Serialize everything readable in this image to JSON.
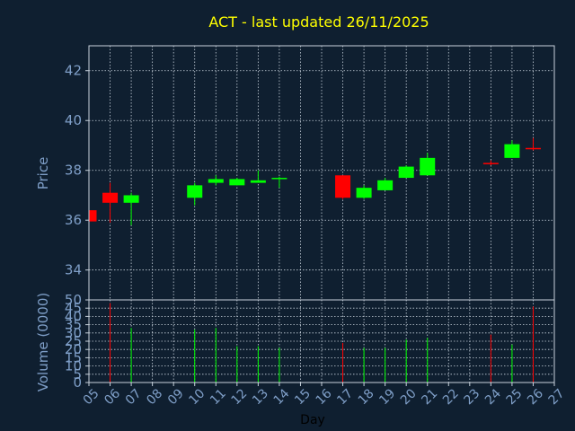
{
  "chart_data": {
    "type": "candlestick",
    "title": "ACT - last updated 26/11/2025",
    "xlabel": "Day",
    "price_panel": {
      "ylabel": "Price",
      "ylim": [
        32.8,
        43
      ],
      "yticks": [
        "34",
        "36",
        "38",
        "40",
        "42"
      ],
      "ytick_values": [
        34,
        36,
        38,
        40,
        42
      ]
    },
    "volume_panel": {
      "ylabel": "Volume (0000)",
      "ylim": [
        0,
        50
      ],
      "yticks": [
        "0",
        "5",
        "10",
        "15",
        "20",
        "25",
        "30",
        "35",
        "40",
        "45",
        "50"
      ],
      "ytick_values": [
        0,
        5,
        10,
        15,
        20,
        25,
        30,
        35,
        40,
        45,
        50
      ]
    },
    "x_range": [
      5,
      27
    ],
    "x_ticks": [
      "05",
      "06",
      "07",
      "08",
      "09",
      "10",
      "11",
      "12",
      "13",
      "14",
      "15",
      "16",
      "17",
      "18",
      "19",
      "20",
      "21",
      "22",
      "23",
      "24",
      "25",
      "26",
      "27"
    ],
    "x_tick_values": [
      5,
      6,
      7,
      8,
      9,
      10,
      11,
      12,
      13,
      14,
      15,
      16,
      17,
      18,
      19,
      20,
      21,
      22,
      23,
      24,
      25,
      26,
      27
    ],
    "grid": true,
    "colors": {
      "background": "#0f1f30",
      "up": "#00ff00",
      "down": "#ff0000",
      "title": "#ffff00",
      "axis_text": "#7f9fc8",
      "frame": "#c8d2dc",
      "grid": "#c8d2dc",
      "xlabel": "#000000"
    },
    "candles": [
      {
        "day": 5,
        "open": 36.4,
        "high": 36.4,
        "low": 35.9,
        "close": 35.95,
        "volume": 0
      },
      {
        "day": 6,
        "open": 37.1,
        "high": 37.5,
        "low": 35.9,
        "close": 36.7,
        "volume": 48
      },
      {
        "day": 7,
        "open": 36.7,
        "high": 37.1,
        "low": 35.8,
        "close": 37.0,
        "volume": 33
      },
      {
        "day": 10,
        "open": 36.9,
        "high": 37.5,
        "low": 36.6,
        "close": 37.4,
        "volume": 32
      },
      {
        "day": 11,
        "open": 37.5,
        "high": 37.8,
        "low": 37.4,
        "close": 37.65,
        "volume": 33
      },
      {
        "day": 12,
        "open": 37.4,
        "high": 37.7,
        "low": 37.4,
        "close": 37.65,
        "volume": 22
      },
      {
        "day": 13,
        "open": 37.5,
        "high": 38.0,
        "low": 37.5,
        "close": 37.6,
        "volume": 22
      },
      {
        "day": 14,
        "open": 37.65,
        "high": 37.75,
        "low": 37.3,
        "close": 37.7,
        "volume": 21
      },
      {
        "day": 17,
        "open": 37.8,
        "high": 37.8,
        "low": 36.85,
        "close": 36.9,
        "volume": 24
      },
      {
        "day": 18,
        "open": 36.9,
        "high": 37.4,
        "low": 36.85,
        "close": 37.3,
        "volume": 21
      },
      {
        "day": 19,
        "open": 37.2,
        "high": 37.7,
        "low": 37.2,
        "close": 37.6,
        "volume": 21
      },
      {
        "day": 20,
        "open": 37.7,
        "high": 38.2,
        "low": 37.7,
        "close": 38.15,
        "volume": 26
      },
      {
        "day": 21,
        "open": 37.8,
        "high": 38.7,
        "low": 37.8,
        "close": 38.5,
        "volume": 27
      },
      {
        "day": 24,
        "open": 38.3,
        "high": 38.4,
        "low": 38.2,
        "close": 38.25,
        "volume": 29
      },
      {
        "day": 25,
        "open": 38.5,
        "high": 39.2,
        "low": 38.5,
        "close": 39.05,
        "volume": 23
      },
      {
        "day": 26,
        "open": 38.9,
        "high": 39.3,
        "low": 38.8,
        "close": 38.85,
        "volume": 46
      }
    ]
  }
}
